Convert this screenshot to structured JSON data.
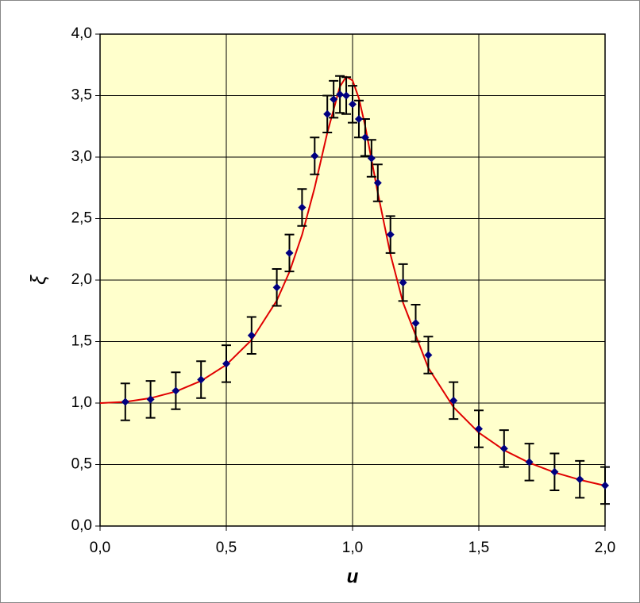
{
  "chart_data": {
    "type": "scatter",
    "xlabel": "u",
    "ylabel": "ξ",
    "xlim": [
      0,
      2
    ],
    "ylim": [
      0,
      4
    ],
    "xticks": [
      {
        "value": 0,
        "label": "0,0"
      },
      {
        "value": 0.5,
        "label": "0,5"
      },
      {
        "value": 1,
        "label": "1,0"
      },
      {
        "value": 1.5,
        "label": "1,5"
      },
      {
        "value": 2,
        "label": "2,0"
      }
    ],
    "yticks": [
      {
        "value": 0,
        "label": "0,0"
      },
      {
        "value": 0.5,
        "label": "0,5"
      },
      {
        "value": 1,
        "label": "1,0"
      },
      {
        "value": 1.5,
        "label": "1,5"
      },
      {
        "value": 2,
        "label": "2,0"
      },
      {
        "value": 2.5,
        "label": "2,5"
      },
      {
        "value": 3,
        "label": "3,0"
      },
      {
        "value": 3.5,
        "label": "3,5"
      },
      {
        "value": 4,
        "label": "4,0"
      }
    ],
    "grid": true,
    "background": "#ffffcc",
    "series": [
      {
        "type": "line",
        "color": "#e00000",
        "x": [
          0,
          0.1,
          0.2,
          0.3,
          0.4,
          0.5,
          0.6,
          0.7,
          0.75,
          0.8,
          0.85,
          0.9,
          0.95,
          0.975,
          1.0,
          1.025,
          1.05,
          1.1,
          1.15,
          1.2,
          1.3,
          1.4,
          1.5,
          1.6,
          1.7,
          1.8,
          1.9,
          2.0
        ],
        "values": [
          1,
          1.01,
          1.04,
          1.094,
          1.18,
          1.311,
          1.513,
          1.834,
          2.066,
          2.368,
          2.752,
          3.198,
          3.574,
          3.654,
          3.623,
          3.479,
          3.253,
          2.709,
          2.21,
          1.816,
          1.286,
          0.966,
          0.759,
          0.617,
          0.514,
          0.436,
          0.376,
          0.328
        ]
      },
      {
        "type": "scatter",
        "color": "#000080",
        "x": [
          0.1,
          0.2,
          0.3,
          0.4,
          0.5,
          0.6,
          0.7,
          0.75,
          0.8,
          0.85,
          0.9,
          0.925,
          0.95,
          0.975,
          1.0,
          1.025,
          1.05,
          1.075,
          1.1,
          1.15,
          1.2,
          1.25,
          1.3,
          1.4,
          1.5,
          1.6,
          1.7,
          1.8,
          1.9,
          2.0
        ],
        "values": [
          1.01,
          1.03,
          1.1,
          1.19,
          1.32,
          1.55,
          1.94,
          2.22,
          2.59,
          3.01,
          3.35,
          3.47,
          3.51,
          3.5,
          3.43,
          3.31,
          3.16,
          2.99,
          2.79,
          2.37,
          1.98,
          1.65,
          1.39,
          1.02,
          0.79,
          0.63,
          0.52,
          0.44,
          0.38,
          0.33
        ],
        "errors": [
          0.15,
          0.15,
          0.15,
          0.15,
          0.15,
          0.15,
          0.15,
          0.15,
          0.15,
          0.15,
          0.15,
          0.15,
          0.15,
          0.15,
          0.15,
          0.15,
          0.15,
          0.15,
          0.15,
          0.15,
          0.15,
          0.15,
          0.15,
          0.15,
          0.15,
          0.15,
          0.15,
          0.15,
          0.15,
          0.15
        ]
      }
    ]
  }
}
